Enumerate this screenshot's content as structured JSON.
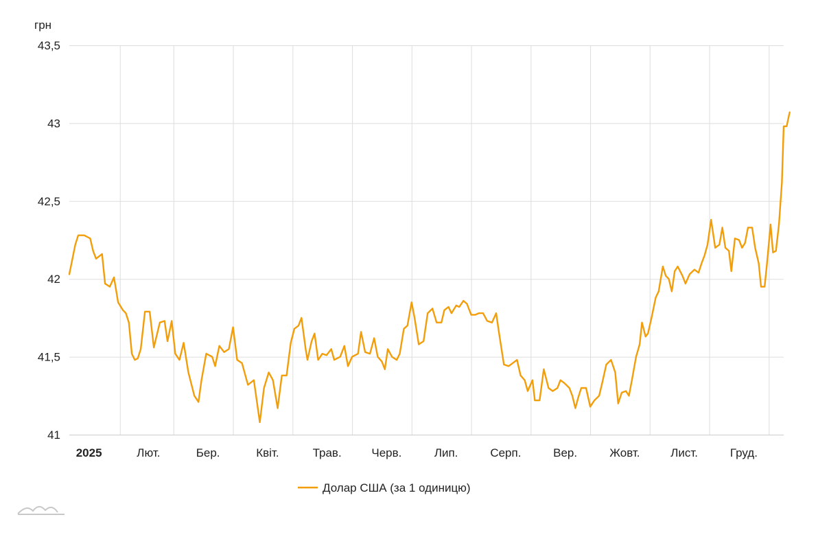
{
  "chart_data": {
    "type": "line",
    "title": "",
    "ylabel": "грн",
    "xlabel": "",
    "ylim": [
      41,
      43.5
    ],
    "ytick_values": [
      41,
      41.5,
      42,
      42.5,
      43,
      43.5
    ],
    "ytick_labels": [
      "41",
      "41,5",
      "42",
      "42,5",
      "43",
      "43,5"
    ],
    "x_range_months": [
      0,
      12
    ],
    "x_ticks": [
      {
        "label": "2025",
        "pos": 0.33,
        "bold": true
      },
      {
        "label": "Лют.",
        "pos": 1.33,
        "bold": false
      },
      {
        "label": "Бер.",
        "pos": 2.33,
        "bold": false
      },
      {
        "label": "Квіт.",
        "pos": 3.33,
        "bold": false
      },
      {
        "label": "Трав.",
        "pos": 4.33,
        "bold": false
      },
      {
        "label": "Черв.",
        "pos": 5.33,
        "bold": false
      },
      {
        "label": "Лип.",
        "pos": 6.33,
        "bold": false
      },
      {
        "label": "Серп.",
        "pos": 7.33,
        "bold": false
      },
      {
        "label": "Вер.",
        "pos": 8.33,
        "bold": false
      },
      {
        "label": "Жовт.",
        "pos": 9.33,
        "bold": false
      },
      {
        "label": "Лист.",
        "pos": 10.33,
        "bold": false
      },
      {
        "label": "Груд.",
        "pos": 11.33,
        "bold": false
      }
    ],
    "gridlines_x_months": [
      0.85,
      1.75,
      2.75,
      3.75,
      4.75,
      5.75,
      6.75,
      7.75,
      8.75,
      9.75,
      10.75,
      11.75
    ],
    "grid": true,
    "legend_position": "bottom-center",
    "series": [
      {
        "name": "Долар США (за 1 одиницю)",
        "color": "#f29d0a",
        "points": [
          [
            0.0,
            42.03
          ],
          [
            0.1,
            42.22
          ],
          [
            0.15,
            42.28
          ],
          [
            0.25,
            42.28
          ],
          [
            0.35,
            42.26
          ],
          [
            0.4,
            42.18
          ],
          [
            0.45,
            42.13
          ],
          [
            0.55,
            42.16
          ],
          [
            0.6,
            41.97
          ],
          [
            0.68,
            41.95
          ],
          [
            0.75,
            42.01
          ],
          [
            0.82,
            41.85
          ],
          [
            0.9,
            41.8
          ],
          [
            0.95,
            41.78
          ],
          [
            1.0,
            41.72
          ],
          [
            1.05,
            41.52
          ],
          [
            1.1,
            41.48
          ],
          [
            1.15,
            41.49
          ],
          [
            1.2,
            41.55
          ],
          [
            1.27,
            41.79
          ],
          [
            1.35,
            41.79
          ],
          [
            1.42,
            41.56
          ],
          [
            1.52,
            41.72
          ],
          [
            1.6,
            41.73
          ],
          [
            1.65,
            41.6
          ],
          [
            1.72,
            41.73
          ],
          [
            1.78,
            41.52
          ],
          [
            1.85,
            41.48
          ],
          [
            1.92,
            41.59
          ],
          [
            2.0,
            41.4
          ],
          [
            2.1,
            41.25
          ],
          [
            2.17,
            41.21
          ],
          [
            2.22,
            41.35
          ],
          [
            2.3,
            41.52
          ],
          [
            2.4,
            41.5
          ],
          [
            2.45,
            41.44
          ],
          [
            2.52,
            41.57
          ],
          [
            2.6,
            41.53
          ],
          [
            2.68,
            41.55
          ],
          [
            2.75,
            41.69
          ],
          [
            2.82,
            41.48
          ],
          [
            2.9,
            41.46
          ],
          [
            3.0,
            41.32
          ],
          [
            3.1,
            41.35
          ],
          [
            3.2,
            41.08
          ],
          [
            3.27,
            41.3
          ],
          [
            3.35,
            41.4
          ],
          [
            3.42,
            41.35
          ],
          [
            3.5,
            41.17
          ],
          [
            3.57,
            41.38
          ],
          [
            3.65,
            41.38
          ],
          [
            3.72,
            41.59
          ],
          [
            3.78,
            41.68
          ],
          [
            3.85,
            41.7
          ],
          [
            3.9,
            41.75
          ],
          [
            3.97,
            41.55
          ],
          [
            4.0,
            41.48
          ],
          [
            4.07,
            41.6
          ],
          [
            4.12,
            41.65
          ],
          [
            4.18,
            41.48
          ],
          [
            4.25,
            41.52
          ],
          [
            4.32,
            41.51
          ],
          [
            4.4,
            41.55
          ],
          [
            4.45,
            41.48
          ],
          [
            4.55,
            41.5
          ],
          [
            4.62,
            41.57
          ],
          [
            4.68,
            41.44
          ],
          [
            4.75,
            41.5
          ],
          [
            4.85,
            41.52
          ],
          [
            4.9,
            41.66
          ],
          [
            4.97,
            41.53
          ],
          [
            5.05,
            41.52
          ],
          [
            5.12,
            41.62
          ],
          [
            5.18,
            41.5
          ],
          [
            5.25,
            41.47
          ],
          [
            5.3,
            41.42
          ],
          [
            5.35,
            41.55
          ],
          [
            5.42,
            41.5
          ],
          [
            5.5,
            41.48
          ],
          [
            5.55,
            41.52
          ],
          [
            5.62,
            41.68
          ],
          [
            5.68,
            41.7
          ],
          [
            5.75,
            41.85
          ],
          [
            5.8,
            41.75
          ],
          [
            5.87,
            41.58
          ],
          [
            5.95,
            41.6
          ],
          [
            6.02,
            41.78
          ],
          [
            6.1,
            41.81
          ],
          [
            6.17,
            41.72
          ],
          [
            6.25,
            41.72
          ],
          [
            6.3,
            41.8
          ],
          [
            6.37,
            41.82
          ],
          [
            6.42,
            41.78
          ],
          [
            6.5,
            41.83
          ],
          [
            6.55,
            41.82
          ],
          [
            6.62,
            41.86
          ],
          [
            6.68,
            41.84
          ],
          [
            6.75,
            41.77
          ],
          [
            6.82,
            41.77
          ],
          [
            6.88,
            41.78
          ],
          [
            6.95,
            41.78
          ],
          [
            7.02,
            41.73
          ],
          [
            7.1,
            41.72
          ],
          [
            7.17,
            41.78
          ],
          [
            7.22,
            41.65
          ],
          [
            7.3,
            41.45
          ],
          [
            7.38,
            41.44
          ],
          [
            7.45,
            41.46
          ],
          [
            7.52,
            41.48
          ],
          [
            7.58,
            41.38
          ],
          [
            7.65,
            41.35
          ],
          [
            7.7,
            41.28
          ],
          [
            7.78,
            41.35
          ],
          [
            7.82,
            41.22
          ],
          [
            7.9,
            41.22
          ],
          [
            7.97,
            41.42
          ],
          [
            8.05,
            41.3
          ],
          [
            8.12,
            41.28
          ],
          [
            8.2,
            41.3
          ],
          [
            8.25,
            41.35
          ],
          [
            8.32,
            41.33
          ],
          [
            8.4,
            41.3
          ],
          [
            8.45,
            41.25
          ],
          [
            8.5,
            41.17
          ],
          [
            8.55,
            41.24
          ],
          [
            8.6,
            41.3
          ],
          [
            8.68,
            41.3
          ],
          [
            8.75,
            41.18
          ],
          [
            8.82,
            41.22
          ],
          [
            8.9,
            41.25
          ],
          [
            8.95,
            41.33
          ],
          [
            9.02,
            41.45
          ],
          [
            9.1,
            41.48
          ],
          [
            9.17,
            41.4
          ],
          [
            9.22,
            41.2
          ],
          [
            9.28,
            41.27
          ],
          [
            9.35,
            41.28
          ],
          [
            9.4,
            41.25
          ],
          [
            9.45,
            41.35
          ],
          [
            9.52,
            41.5
          ],
          [
            9.58,
            41.58
          ],
          [
            9.62,
            41.72
          ],
          [
            9.68,
            41.63
          ],
          [
            9.72,
            41.65
          ],
          [
            9.78,
            41.75
          ],
          [
            9.85,
            41.88
          ],
          [
            9.9,
            41.92
          ],
          [
            9.97,
            42.08
          ],
          [
            10.02,
            42.02
          ],
          [
            10.07,
            42.0
          ],
          [
            10.12,
            41.92
          ],
          [
            10.17,
            42.05
          ],
          [
            10.22,
            42.08
          ],
          [
            10.3,
            42.02
          ],
          [
            10.35,
            41.97
          ],
          [
            10.42,
            42.03
          ],
          [
            10.5,
            42.06
          ],
          [
            10.57,
            42.04
          ],
          [
            10.62,
            42.1
          ],
          [
            10.67,
            42.15
          ],
          [
            10.72,
            42.22
          ],
          [
            10.78,
            42.38
          ],
          [
            10.85,
            42.2
          ],
          [
            10.92,
            42.22
          ],
          [
            10.97,
            42.33
          ],
          [
            11.02,
            42.2
          ],
          [
            11.08,
            42.18
          ],
          [
            11.12,
            42.05
          ],
          [
            11.18,
            42.26
          ],
          [
            11.25,
            42.25
          ],
          [
            11.3,
            42.2
          ],
          [
            11.35,
            42.23
          ],
          [
            11.4,
            42.33
          ],
          [
            11.47,
            42.33
          ],
          [
            11.52,
            42.2
          ],
          [
            11.58,
            42.1
          ],
          [
            11.62,
            41.95
          ],
          [
            11.68,
            41.95
          ],
          [
            11.72,
            42.1
          ],
          [
            11.78,
            42.35
          ],
          [
            11.82,
            42.17
          ],
          [
            11.87,
            42.18
          ],
          [
            11.92,
            42.35
          ],
          [
            11.97,
            42.62
          ],
          [
            12.0,
            42.98
          ],
          [
            12.05,
            42.98
          ],
          [
            12.1,
            43.07
          ]
        ]
      }
    ]
  }
}
